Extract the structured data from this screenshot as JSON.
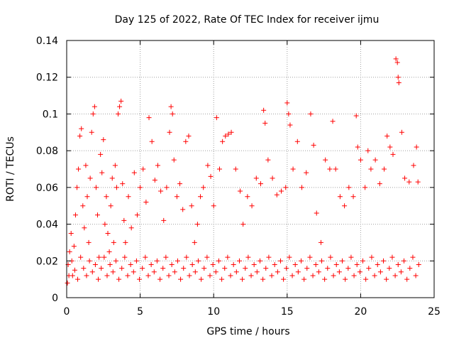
{
  "chart_data": {
    "type": "scatter",
    "title": "Day 125 of 2022, Rate Of TEC Index for receiver ijmu",
    "xlabel": "GPS time / hours",
    "ylabel": "ROTI / TECUs",
    "xlim": [
      0,
      25
    ],
    "ylim": [
      0,
      0.14
    ],
    "xticks": [
      0,
      5,
      10,
      15,
      20,
      25
    ],
    "xtick_labels": [
      "0",
      "5",
      "10",
      "15",
      "20",
      "25"
    ],
    "yticks": [
      0,
      0.02,
      0.04,
      0.06,
      0.08,
      0.1,
      0.12,
      0.14
    ],
    "ytick_labels": [
      "0",
      "0.02",
      "0.04",
      "0.06",
      "0.08",
      "0.1",
      "0.12",
      "0.14"
    ],
    "grid": true,
    "marker": "+",
    "marker_color": "#ff0000",
    "series": [
      {
        "name": "ROTI",
        "points": [
          [
            0.1,
            0.018
          ],
          [
            0.2,
            0.025
          ],
          [
            0.3,
            0.035
          ],
          [
            0.4,
            0.012
          ],
          [
            0.5,
            0.028
          ],
          [
            0.6,
            0.045
          ],
          [
            0.7,
            0.06
          ],
          [
            0.8,
            0.07
          ],
          [
            0.9,
            0.088
          ],
          [
            1.0,
            0.092
          ],
          [
            1.1,
            0.05
          ],
          [
            1.2,
            0.038
          ],
          [
            1.3,
            0.072
          ],
          [
            1.4,
            0.055
          ],
          [
            1.5,
            0.03
          ],
          [
            1.6,
            0.065
          ],
          [
            1.7,
            0.09
          ],
          [
            1.8,
            0.1
          ],
          [
            1.9,
            0.104
          ],
          [
            2.0,
            0.06
          ],
          [
            2.1,
            0.045
          ],
          [
            2.2,
            0.022
          ],
          [
            2.3,
            0.078
          ],
          [
            2.4,
            0.068
          ],
          [
            2.5,
            0.086
          ],
          [
            2.6,
            0.04
          ],
          [
            2.7,
            0.055
          ],
          [
            2.8,
            0.035
          ],
          [
            2.9,
            0.025
          ],
          [
            3.0,
            0.05
          ],
          [
            3.1,
            0.065
          ],
          [
            3.2,
            0.03
          ],
          [
            3.3,
            0.072
          ],
          [
            3.4,
            0.06
          ],
          [
            3.5,
            0.1
          ],
          [
            3.6,
            0.104
          ],
          [
            3.7,
            0.107
          ],
          [
            3.8,
            0.062
          ],
          [
            3.9,
            0.042
          ],
          [
            4.0,
            0.03
          ],
          [
            4.2,
            0.055
          ],
          [
            4.4,
            0.038
          ],
          [
            4.6,
            0.068
          ],
          [
            4.8,
            0.045
          ],
          [
            5.0,
            0.06
          ],
          [
            5.2,
            0.07
          ],
          [
            5.4,
            0.052
          ],
          [
            5.6,
            0.098
          ],
          [
            5.8,
            0.085
          ],
          [
            6.0,
            0.064
          ],
          [
            6.2,
            0.072
          ],
          [
            6.4,
            0.058
          ],
          [
            6.6,
            0.042
          ],
          [
            6.8,
            0.06
          ],
          [
            7.0,
            0.09
          ],
          [
            7.1,
            0.104
          ],
          [
            7.2,
            0.1
          ],
          [
            7.3,
            0.075
          ],
          [
            7.5,
            0.055
          ],
          [
            7.7,
            0.062
          ],
          [
            7.9,
            0.048
          ],
          [
            8.1,
            0.085
          ],
          [
            8.3,
            0.088
          ],
          [
            8.5,
            0.05
          ],
          [
            8.7,
            0.03
          ],
          [
            8.9,
            0.04
          ],
          [
            9.1,
            0.055
          ],
          [
            9.3,
            0.06
          ],
          [
            9.6,
            0.072
          ],
          [
            9.8,
            0.066
          ],
          [
            10.0,
            0.05
          ],
          [
            10.2,
            0.098
          ],
          [
            10.4,
            0.07
          ],
          [
            10.6,
            0.085
          ],
          [
            10.8,
            0.088
          ],
          [
            11.0,
            0.089
          ],
          [
            11.2,
            0.09
          ],
          [
            11.5,
            0.07
          ],
          [
            11.8,
            0.058
          ],
          [
            12.0,
            0.04
          ],
          [
            12.3,
            0.055
          ],
          [
            12.6,
            0.05
          ],
          [
            12.9,
            0.065
          ],
          [
            13.2,
            0.062
          ],
          [
            13.4,
            0.102
          ],
          [
            13.5,
            0.095
          ],
          [
            13.7,
            0.075
          ],
          [
            14.0,
            0.065
          ],
          [
            14.3,
            0.056
          ],
          [
            14.6,
            0.058
          ],
          [
            14.9,
            0.06
          ],
          [
            15.0,
            0.106
          ],
          [
            15.1,
            0.1
          ],
          [
            15.2,
            0.094
          ],
          [
            15.4,
            0.07
          ],
          [
            15.7,
            0.085
          ],
          [
            16.0,
            0.06
          ],
          [
            16.3,
            0.068
          ],
          [
            16.6,
            0.1
          ],
          [
            16.8,
            0.083
          ],
          [
            17.0,
            0.046
          ],
          [
            17.3,
            0.03
          ],
          [
            17.6,
            0.075
          ],
          [
            17.9,
            0.07
          ],
          [
            18.1,
            0.096
          ],
          [
            18.3,
            0.07
          ],
          [
            18.6,
            0.055
          ],
          [
            18.9,
            0.05
          ],
          [
            19.2,
            0.06
          ],
          [
            19.5,
            0.055
          ],
          [
            19.7,
            0.099
          ],
          [
            19.8,
            0.082
          ],
          [
            20.0,
            0.075
          ],
          [
            20.3,
            0.06
          ],
          [
            20.5,
            0.08
          ],
          [
            20.7,
            0.07
          ],
          [
            21.0,
            0.075
          ],
          [
            21.3,
            0.062
          ],
          [
            21.6,
            0.07
          ],
          [
            21.8,
            0.088
          ],
          [
            22.0,
            0.082
          ],
          [
            22.2,
            0.078
          ],
          [
            22.4,
            0.13
          ],
          [
            22.5,
            0.128
          ],
          [
            22.55,
            0.12
          ],
          [
            22.6,
            0.117
          ],
          [
            22.8,
            0.09
          ],
          [
            23.0,
            0.065
          ],
          [
            23.3,
            0.063
          ],
          [
            23.6,
            0.072
          ],
          [
            23.8,
            0.082
          ],
          [
            23.9,
            0.063
          ],
          [
            0.05,
            0.008
          ],
          [
            0.15,
            0.012
          ],
          [
            0.35,
            0.02
          ],
          [
            0.55,
            0.015
          ],
          [
            0.75,
            0.01
          ],
          [
            0.95,
            0.022
          ],
          [
            1.15,
            0.016
          ],
          [
            1.35,
            0.012
          ],
          [
            1.55,
            0.02
          ],
          [
            1.75,
            0.014
          ],
          [
            1.95,
            0.018
          ],
          [
            2.15,
            0.01
          ],
          [
            2.35,
            0.016
          ],
          [
            2.55,
            0.022
          ],
          [
            2.75,
            0.012
          ],
          [
            2.95,
            0.018
          ],
          [
            3.15,
            0.014
          ],
          [
            3.35,
            0.02
          ],
          [
            3.55,
            0.01
          ],
          [
            3.75,
            0.016
          ],
          [
            3.95,
            0.022
          ],
          [
            4.15,
            0.012
          ],
          [
            4.35,
            0.018
          ],
          [
            4.55,
            0.014
          ],
          [
            4.75,
            0.02
          ],
          [
            4.95,
            0.01
          ],
          [
            5.15,
            0.016
          ],
          [
            5.35,
            0.022
          ],
          [
            5.55,
            0.012
          ],
          [
            5.75,
            0.018
          ],
          [
            5.95,
            0.014
          ],
          [
            6.15,
            0.02
          ],
          [
            6.35,
            0.01
          ],
          [
            6.55,
            0.016
          ],
          [
            6.75,
            0.022
          ],
          [
            6.95,
            0.012
          ],
          [
            7.15,
            0.018
          ],
          [
            7.35,
            0.014
          ],
          [
            7.55,
            0.02
          ],
          [
            7.75,
            0.01
          ],
          [
            7.95,
            0.016
          ],
          [
            8.15,
            0.022
          ],
          [
            8.35,
            0.012
          ],
          [
            8.55,
            0.018
          ],
          [
            8.75,
            0.014
          ],
          [
            8.95,
            0.02
          ],
          [
            9.15,
            0.01
          ],
          [
            9.35,
            0.016
          ],
          [
            9.55,
            0.022
          ],
          [
            9.75,
            0.012
          ],
          [
            9.95,
            0.018
          ],
          [
            10.15,
            0.014
          ],
          [
            10.35,
            0.02
          ],
          [
            10.55,
            0.01
          ],
          [
            10.75,
            0.016
          ],
          [
            10.95,
            0.022
          ],
          [
            11.15,
            0.012
          ],
          [
            11.35,
            0.018
          ],
          [
            11.55,
            0.014
          ],
          [
            11.75,
            0.02
          ],
          [
            11.95,
            0.01
          ],
          [
            12.15,
            0.016
          ],
          [
            12.35,
            0.022
          ],
          [
            12.55,
            0.012
          ],
          [
            12.75,
            0.018
          ],
          [
            12.95,
            0.014
          ],
          [
            13.15,
            0.02
          ],
          [
            13.35,
            0.01
          ],
          [
            13.55,
            0.016
          ],
          [
            13.75,
            0.022
          ],
          [
            13.95,
            0.012
          ],
          [
            14.15,
            0.018
          ],
          [
            14.35,
            0.014
          ],
          [
            14.55,
            0.02
          ],
          [
            14.75,
            0.01
          ],
          [
            14.95,
            0.016
          ],
          [
            15.15,
            0.022
          ],
          [
            15.35,
            0.012
          ],
          [
            15.55,
            0.018
          ],
          [
            15.75,
            0.014
          ],
          [
            15.95,
            0.02
          ],
          [
            16.15,
            0.01
          ],
          [
            16.35,
            0.016
          ],
          [
            16.55,
            0.022
          ],
          [
            16.75,
            0.012
          ],
          [
            16.95,
            0.018
          ],
          [
            17.15,
            0.014
          ],
          [
            17.35,
            0.02
          ],
          [
            17.55,
            0.01
          ],
          [
            17.75,
            0.016
          ],
          [
            17.95,
            0.022
          ],
          [
            18.15,
            0.012
          ],
          [
            18.35,
            0.018
          ],
          [
            18.55,
            0.014
          ],
          [
            18.75,
            0.02
          ],
          [
            18.95,
            0.01
          ],
          [
            19.15,
            0.016
          ],
          [
            19.35,
            0.022
          ],
          [
            19.55,
            0.012
          ],
          [
            19.75,
            0.018
          ],
          [
            19.95,
            0.014
          ],
          [
            20.15,
            0.02
          ],
          [
            20.35,
            0.01
          ],
          [
            20.55,
            0.016
          ],
          [
            20.75,
            0.022
          ],
          [
            20.95,
            0.012
          ],
          [
            21.15,
            0.018
          ],
          [
            21.35,
            0.014
          ],
          [
            21.55,
            0.02
          ],
          [
            21.75,
            0.01
          ],
          [
            21.95,
            0.016
          ],
          [
            22.15,
            0.022
          ],
          [
            22.35,
            0.012
          ],
          [
            22.55,
            0.018
          ],
          [
            22.75,
            0.014
          ],
          [
            22.95,
            0.02
          ],
          [
            23.15,
            0.01
          ],
          [
            23.35,
            0.016
          ],
          [
            23.55,
            0.022
          ],
          [
            23.75,
            0.012
          ],
          [
            23.95,
            0.018
          ]
        ]
      }
    ]
  }
}
